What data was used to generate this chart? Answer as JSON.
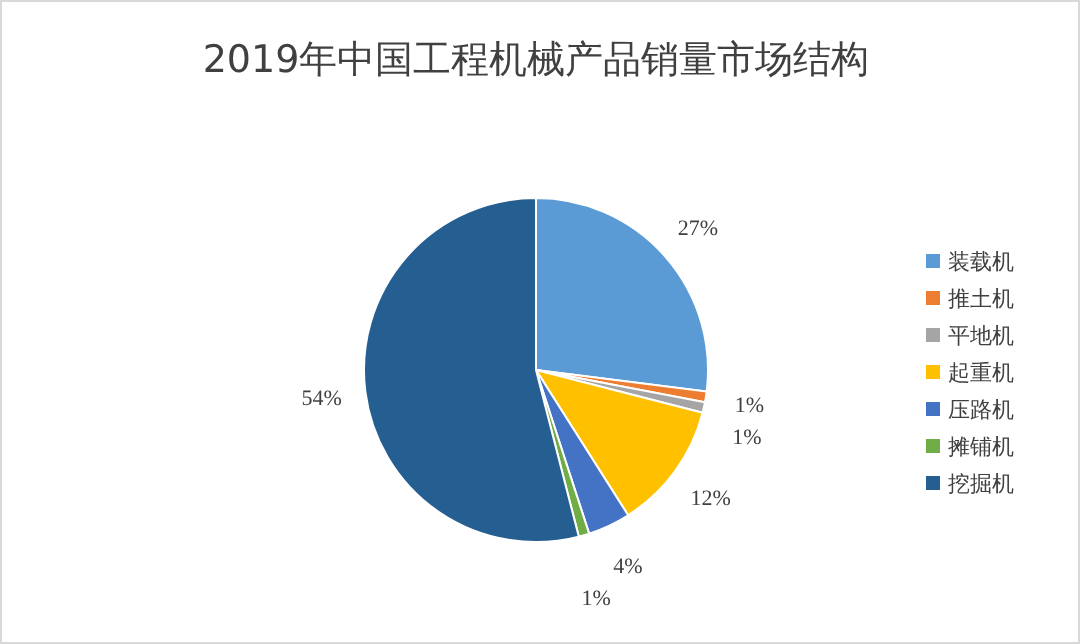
{
  "chart_data": {
    "type": "pie",
    "title": "2019年中国工程机械产品销量市场结构",
    "categories": [
      "装载机",
      "推土机",
      "平地机",
      "起重机",
      "压路机",
      "摊铺机",
      "挖掘机"
    ],
    "values": [
      27,
      1,
      1,
      12,
      4,
      1,
      54
    ],
    "colors": [
      "#5b9bd5",
      "#ed7d31",
      "#a5a5a5",
      "#ffc000",
      "#4472c4",
      "#70ad47",
      "#255e91"
    ],
    "value_labels": [
      "27%",
      "1%",
      "1%",
      "12%",
      "4%",
      "1%",
      "54%"
    ],
    "legend": "right"
  }
}
